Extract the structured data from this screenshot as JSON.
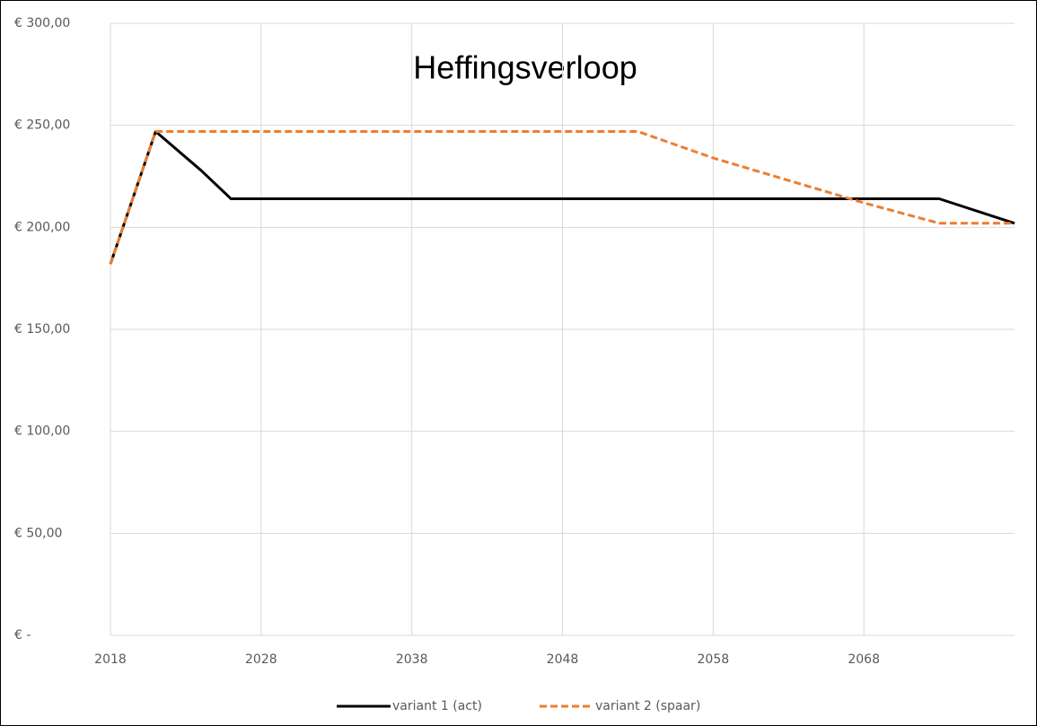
{
  "chart_data": {
    "type": "line",
    "title": "Heffingsverloop",
    "series": [
      {
        "name": "variant 1 (act)",
        "color": "#000000",
        "dash": false,
        "x": [
          2018,
          2021,
          2024,
          2026,
          2073,
          2078
        ],
        "values": [
          182,
          247,
          228,
          214,
          214,
          202
        ]
      },
      {
        "name": "variant 2 (spaar)",
        "color": "#ed7d31",
        "dash": true,
        "x": [
          2018,
          2021,
          2053,
          2058,
          2063,
          2068,
          2073,
          2078
        ],
        "values": [
          182,
          247,
          247,
          234,
          223,
          212,
          202,
          202
        ]
      }
    ],
    "xlim": [
      2018,
      2078
    ],
    "xticks": [
      2018,
      2028,
      2038,
      2048,
      2058,
      2068
    ],
    "ylim": [
      0,
      300
    ],
    "yticks": [
      {
        "value": 0,
        "label": "€ -"
      },
      {
        "value": 50,
        "label": "€ 50,00"
      },
      {
        "value": 100,
        "label": "€ 100,00"
      },
      {
        "value": 150,
        "label": "€ 150,00"
      },
      {
        "value": 200,
        "label": "€ 200,00"
      },
      {
        "value": 250,
        "label": "€ 250,00"
      },
      {
        "value": 300,
        "label": "€ 300,00"
      }
    ],
    "grid": true,
    "legend": "bottom"
  }
}
